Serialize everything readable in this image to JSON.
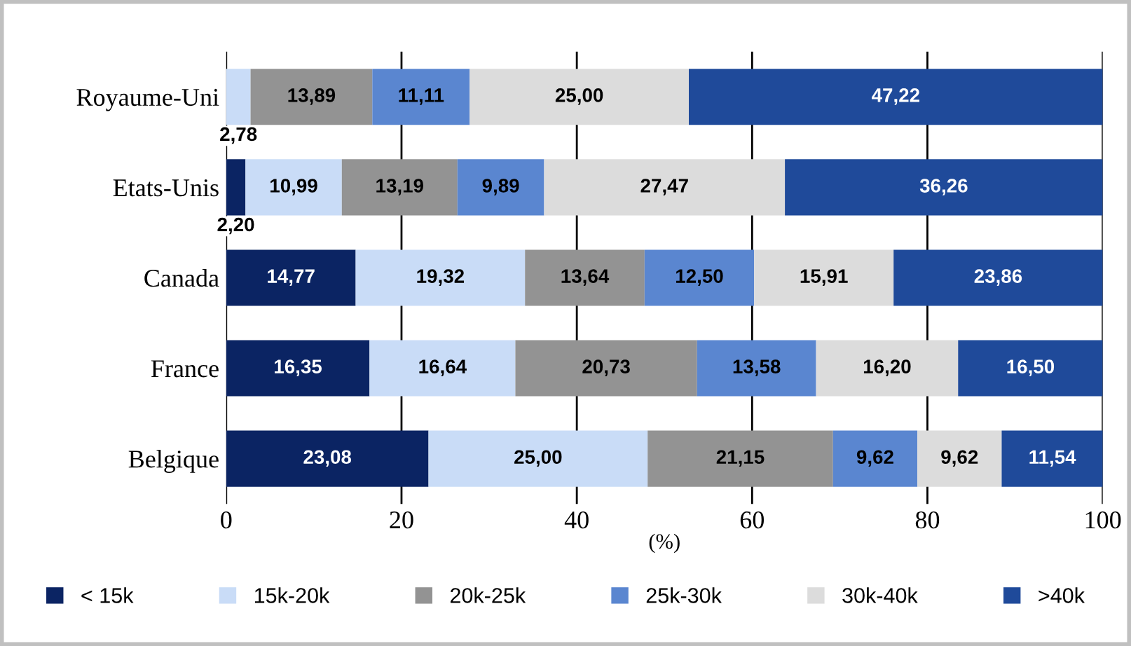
{
  "chart_data": {
    "type": "bar",
    "orientation": "horizontal",
    "stacked": true,
    "xlabel": "(%)",
    "categories": [
      "Royaume-Uni",
      "Etats-Unis",
      "Canada",
      "France",
      "Belgique"
    ],
    "xlim": [
      0,
      100
    ],
    "xticks": [
      0,
      20,
      40,
      60,
      80,
      100
    ],
    "grid": "x",
    "legend": "bottom",
    "series": [
      {
        "name": "< 15k",
        "color": "#0b2463",
        "values": [
          0,
          2.2,
          14.77,
          16.35,
          23.08
        ],
        "value_labels": [
          null,
          "2,20",
          "14,77",
          "16,35",
          "23,08"
        ]
      },
      {
        "name": "15k-20k",
        "color": "#c9dcf7",
        "values": [
          2.78,
          10.99,
          19.32,
          16.64,
          25.0
        ],
        "value_labels": [
          "2,78",
          "10,99",
          "19,32",
          "16,64",
          "25,00"
        ]
      },
      {
        "name": "20k-25k",
        "color": "#939393",
        "values": [
          13.89,
          13.19,
          13.64,
          20.73,
          21.15
        ],
        "value_labels": [
          "13,89",
          "13,19",
          "13,64",
          "20,73",
          "21,15"
        ]
      },
      {
        "name": "25k-30k",
        "color": "#5a86d0",
        "values": [
          11.11,
          9.89,
          12.5,
          13.58,
          9.62
        ],
        "value_labels": [
          "11,11",
          "9,89",
          "12,50",
          "13,58",
          "9,62"
        ]
      },
      {
        "name": "30k-40k",
        "color": "#dcdcdc",
        "values": [
          25.0,
          27.47,
          15.91,
          16.2,
          9.62
        ],
        "value_labels": [
          "25,00",
          "27,47",
          "15,91",
          "16,20",
          "9,62"
        ]
      },
      {
        "name": ">40k",
        "color": "#1f4a9a",
        "values": [
          47.22,
          36.26,
          23.86,
          16.5,
          11.54
        ],
        "value_labels": [
          "47,22",
          "36,26",
          "23,86",
          "16,50",
          "11,54"
        ]
      }
    ]
  }
}
